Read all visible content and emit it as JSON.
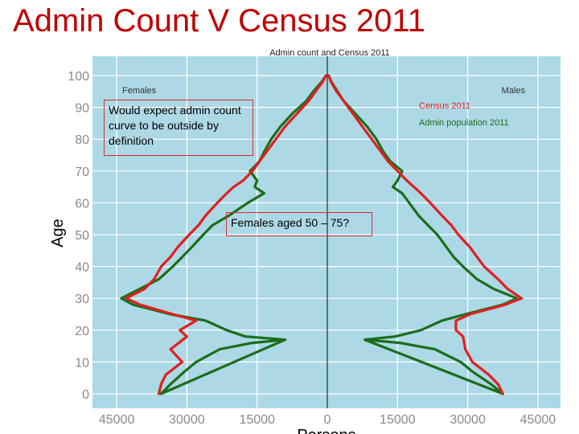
{
  "slide": {
    "title": "Admin Count V Census 2011"
  },
  "callouts": [
    {
      "text": "Would expect admin count curve to be outside by definition"
    },
    {
      "text": "Females aged 50 – 75?"
    }
  ],
  "chart_data": {
    "type": "line",
    "title": "Admin count and Census 2011",
    "xlabel": "Persons",
    "ylabel": "Age",
    "xlim": [
      -50000,
      50000
    ],
    "ylim": [
      -3,
      101
    ],
    "x_ticks": [
      {
        "value": -45000,
        "label": "45000"
      },
      {
        "value": -30000,
        "label": "30000"
      },
      {
        "value": -15000,
        "label": "15000"
      },
      {
        "value": 0,
        "label": "0"
      },
      {
        "value": 15000,
        "label": "15000"
      },
      {
        "value": 30000,
        "label": "30000"
      },
      {
        "value": 45000,
        "label": "45000"
      }
    ],
    "y_ticks": [
      0,
      10,
      20,
      30,
      40,
      50,
      60,
      70,
      80,
      90,
      100
    ],
    "side_labels": {
      "left": "Females",
      "right": "Males"
    },
    "legend_position": "top-right",
    "grid": true,
    "colors": {
      "background": "#add8e6",
      "census": "#e02020",
      "admin": "#1a6e1a"
    },
    "series": [
      {
        "name": "Census 2011",
        "color": "#e02020",
        "female": {
          "ages": [
            0,
            3,
            6,
            10,
            14,
            18,
            20,
            23,
            25,
            28,
            30,
            33,
            36,
            40,
            43,
            46,
            50,
            53,
            56,
            60,
            63,
            65,
            67,
            70,
            73,
            76,
            80,
            84,
            88,
            92,
            95,
            98,
            100
          ],
          "values": [
            36000,
            35500,
            34500,
            31000,
            33500,
            30000,
            31500,
            28000,
            33000,
            40000,
            43000,
            39000,
            37000,
            35500,
            33500,
            32000,
            29500,
            27500,
            26000,
            23500,
            21500,
            20000,
            18000,
            16000,
            14500,
            13000,
            11000,
            9000,
            6500,
            4000,
            2500,
            1000,
            300
          ]
        },
        "male": {
          "ages": [
            0,
            3,
            6,
            10,
            14,
            18,
            20,
            23,
            25,
            28,
            30,
            33,
            36,
            40,
            43,
            46,
            50,
            53,
            56,
            60,
            63,
            65,
            67,
            70,
            73,
            76,
            80,
            84,
            88,
            92,
            95,
            98,
            100
          ],
          "values": [
            37500,
            36500,
            34500,
            31000,
            29500,
            29000,
            27500,
            27500,
            30500,
            38000,
            41500,
            38500,
            36500,
            33500,
            32000,
            30500,
            28000,
            26500,
            24500,
            22000,
            20000,
            18500,
            17000,
            15000,
            13000,
            11500,
            9500,
            7500,
            5500,
            3500,
            2000,
            800,
            300
          ]
        }
      },
      {
        "name": "Admin population 2011",
        "color": "#1a6e1a",
        "female": {
          "ages": [
            17,
            16,
            14,
            10,
            7,
            5,
            3,
            0
          ],
          "values": [
            9000,
            16000,
            23000,
            28000,
            30500,
            32000,
            33500,
            35500
          ],
          "upper_ages": [
            17,
            18,
            20,
            23,
            25,
            28,
            30,
            33,
            36,
            40,
            43,
            46,
            50,
            53,
            56,
            60,
            63,
            65,
            67,
            70,
            73,
            76,
            80,
            84,
            88,
            92,
            95,
            98,
            100
          ],
          "upper_values": [
            9000,
            17500,
            21500,
            26000,
            33500,
            41500,
            44000,
            40000,
            36000,
            33000,
            31000,
            29000,
            26500,
            24500,
            21000,
            17000,
            13500,
            15500,
            15000,
            16500,
            14500,
            13500,
            12000,
            10000,
            7500,
            4500,
            3000,
            1200,
            300
          ]
        },
        "male": {
          "ages": [
            17,
            16,
            14,
            10,
            7,
            5,
            3,
            0
          ],
          "values": [
            8000,
            15500,
            23000,
            28500,
            31000,
            33000,
            35000,
            37500
          ],
          "upper_ages": [
            17,
            18,
            20,
            23,
            25,
            28,
            30,
            33,
            36,
            40,
            43,
            46,
            50,
            53,
            56,
            60,
            63,
            65,
            67,
            70,
            73,
            76,
            80,
            84,
            88,
            92,
            95,
            98,
            100
          ],
          "upper_values": [
            8000,
            14500,
            20000,
            24500,
            29500,
            37500,
            40500,
            35500,
            32000,
            29000,
            27000,
            25500,
            23500,
            21500,
            19500,
            17500,
            16000,
            14000,
            15000,
            16000,
            13500,
            12000,
            10500,
            8500,
            6000,
            3500,
            2200,
            900,
            300
          ]
        }
      }
    ]
  }
}
